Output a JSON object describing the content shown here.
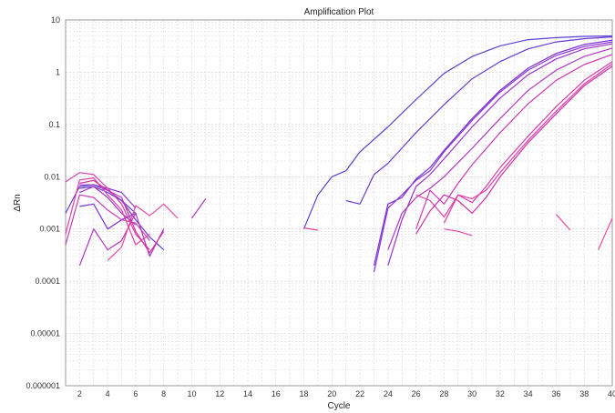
{
  "chart_data": {
    "type": "line",
    "title": "Amplification Plot",
    "xlabel": "Cycle",
    "ylabel": "ΔRn",
    "xlim": [
      1,
      40
    ],
    "ylim": [
      1e-06,
      10
    ],
    "yscale": "log",
    "grid": true,
    "legend": "none",
    "x_ticks": [
      "2",
      "4",
      "6",
      "8",
      "10",
      "12",
      "14",
      "16",
      "18",
      "20",
      "22",
      "24",
      "26",
      "28",
      "30",
      "32",
      "34",
      "36",
      "38",
      "40"
    ],
    "y_ticks": [
      "10",
      "1",
      "0.1",
      "0.01",
      "0.001",
      "0.0001",
      "0.00001",
      "0.000001"
    ],
    "series": [
      {
        "color": "#5b3fd4",
        "segments": [
          [
            [
              1,
              0.002
            ],
            [
              2,
              0.0065
            ],
            [
              3,
              0.007
            ],
            [
              4,
              0.0055
            ],
            [
              5,
              0.0035
            ],
            [
              6,
              0.002
            ]
          ],
          [
            [
              18,
              0.001
            ],
            [
              19,
              0.0045
            ],
            [
              20,
              0.01
            ],
            [
              21,
              0.013
            ],
            [
              22,
              0.03
            ],
            [
              24,
              0.09
            ],
            [
              26,
              0.3
            ],
            [
              28,
              0.95
            ],
            [
              30,
              2.0
            ],
            [
              32,
              3.2
            ],
            [
              34,
              4.2
            ],
            [
              36,
              4.6
            ],
            [
              38,
              4.85
            ],
            [
              40,
              4.95
            ]
          ]
        ]
      },
      {
        "color": "#6a3ad0",
        "segments": [
          [
            [
              2,
              0.006
            ],
            [
              3,
              0.0065
            ],
            [
              4,
              0.005
            ],
            [
              5,
              0.0035
            ],
            [
              6,
              0.0015
            ],
            [
              7,
              0.0007
            ],
            [
              8,
              0.0004
            ]
          ],
          [
            [
              21,
              0.0035
            ],
            [
              22,
              0.003
            ],
            [
              23,
              0.011
            ],
            [
              24,
              0.018
            ],
            [
              26,
              0.07
            ],
            [
              28,
              0.24
            ],
            [
              30,
              0.75
            ],
            [
              32,
              1.6
            ],
            [
              34,
              2.8
            ],
            [
              36,
              3.8
            ],
            [
              38,
              4.4
            ],
            [
              40,
              4.75
            ]
          ]
        ]
      },
      {
        "color": "#7b2fd6",
        "segments": [
          [
            [
              2,
              0.0027
            ],
            [
              3,
              0.003
            ],
            [
              4,
              0.001
            ],
            [
              5,
              0.0015
            ],
            [
              6,
              0.002
            ]
          ],
          [
            [
              23,
              0.0002
            ],
            [
              24,
              0.003
            ],
            [
              25,
              0.004
            ],
            [
              26,
              0.009
            ],
            [
              27,
              0.015
            ],
            [
              28,
              0.032
            ],
            [
              30,
              0.13
            ],
            [
              32,
              0.45
            ],
            [
              34,
              1.2
            ],
            [
              36,
              2.3
            ],
            [
              38,
              3.4
            ],
            [
              40,
              4.1
            ]
          ]
        ]
      },
      {
        "color": "#8a35d4",
        "segments": [
          [
            [
              2,
              0.007
            ],
            [
              3,
              0.007
            ],
            [
              4,
              0.006
            ],
            [
              5,
              0.005
            ],
            [
              6,
              0.0025
            ]
          ],
          [
            [
              23,
              0.00015
            ],
            [
              24,
              0.0025
            ],
            [
              25,
              0.0045
            ],
            [
              26,
              0.0085
            ],
            [
              27,
              0.013
            ],
            [
              28,
              0.03
            ],
            [
              30,
              0.12
            ],
            [
              32,
              0.42
            ],
            [
              34,
              1.1
            ],
            [
              36,
              2.1
            ],
            [
              38,
              3.1
            ],
            [
              40,
              3.8
            ]
          ]
        ]
      },
      {
        "color": "#9a32c8",
        "segments": [
          [
            [
              2,
              0.005
            ],
            [
              3,
              0.0065
            ],
            [
              4,
              0.004
            ],
            [
              5,
              0.002
            ],
            [
              6,
              0.0012
            ]
          ],
          [
            [
              24,
              0.0002
            ],
            [
              25,
              0.0015
            ],
            [
              26,
              0.0065
            ],
            [
              27,
              0.011
            ],
            [
              28,
              0.022
            ],
            [
              30,
              0.09
            ],
            [
              32,
              0.32
            ],
            [
              34,
              0.9
            ],
            [
              36,
              1.8
            ],
            [
              38,
              2.8
            ],
            [
              40,
              3.5
            ]
          ]
        ]
      },
      {
        "color": "#b038c0",
        "segments": [
          [
            [
              2,
              0.0002
            ],
            [
              3,
              0.001
            ],
            [
              4,
              0.0004
            ],
            [
              5,
              0.0006
            ],
            [
              6,
              0.002
            ],
            [
              7,
              0.0003
            ],
            [
              8,
              0.001
            ]
          ],
          [
            [
              10,
              0.0016
            ],
            [
              11,
              0.0038
            ]
          ],
          [
            [
              24,
              0.0004
            ],
            [
              25,
              0.002
            ],
            [
              26,
              0.004
            ],
            [
              27,
              0.006
            ],
            [
              28,
              0.01
            ],
            [
              30,
              0.035
            ],
            [
              32,
              0.13
            ],
            [
              34,
              0.45
            ],
            [
              36,
              1.1
            ],
            [
              38,
              2.0
            ],
            [
              40,
              2.9
            ]
          ]
        ]
      },
      {
        "color": "#c93bb4",
        "segments": [
          [
            [
              1,
              0.0005
            ],
            [
              2,
              0.0045
            ],
            [
              3,
              0.004
            ],
            [
              4,
              0.0023
            ],
            [
              5,
              0.0015
            ],
            [
              6,
              0.0013
            ],
            [
              7,
              0.0006
            ]
          ],
          [
            [
              26,
              0.001
            ],
            [
              27,
              0.0055
            ],
            [
              28,
              0.003
            ],
            [
              29,
              0.0075
            ],
            [
              30,
              0.017
            ],
            [
              32,
              0.07
            ],
            [
              34,
              0.25
            ],
            [
              36,
              0.7
            ],
            [
              38,
              1.4
            ],
            [
              40,
              2.2
            ]
          ]
        ]
      },
      {
        "color": "#d63fae",
        "segments": [
          [
            [
              1,
              0.008
            ],
            [
              2,
              0.012
            ],
            [
              3,
              0.011
            ],
            [
              4,
              0.006
            ],
            [
              5,
              0.003
            ],
            [
              6,
              0.0008
            ],
            [
              7,
              0.0004
            ]
          ],
          [
            [
              28,
              0.0013
            ],
            [
              29,
              0.0045
            ],
            [
              30,
              0.0032
            ],
            [
              31,
              0.0065
            ],
            [
              32,
              0.015
            ],
            [
              34,
              0.06
            ],
            [
              36,
              0.22
            ],
            [
              38,
              0.7
            ],
            [
              40,
              1.6
            ]
          ]
        ]
      },
      {
        "color": "#e03fa8",
        "segments": [
          [
            [
              1,
              0.0008
            ],
            [
              2,
              0.0087
            ],
            [
              3,
              0.0095
            ],
            [
              4,
              0.0045
            ],
            [
              5,
              0.0023
            ],
            [
              6,
              0.0005
            ],
            [
              7,
              0.0008
            ]
          ],
          [
            [
              18,
              0.00105
            ],
            [
              19,
              0.00095
            ]
          ],
          [
            [
              26,
              0.0045
            ],
            [
              27,
              0.0035
            ],
            [
              28,
              0.0017
            ],
            [
              29,
              0.0045
            ],
            [
              30,
              0.0038
            ],
            [
              31,
              0.0055
            ],
            [
              32,
              0.012
            ],
            [
              34,
              0.05
            ],
            [
              36,
              0.18
            ],
            [
              38,
              0.6
            ],
            [
              40,
              1.45
            ]
          ]
        ]
      },
      {
        "color": "#e84aa4",
        "segments": [
          [
            [
              4,
              0.00025
            ],
            [
              5,
              0.00045
            ],
            [
              6,
              0.0028
            ],
            [
              7,
              0.0018
            ],
            [
              8,
              0.003
            ],
            [
              9,
              0.0016
            ]
          ],
          [
            [
              28,
              0.001
            ],
            [
              29,
              0.0009
            ],
            [
              30,
              0.00075
            ]
          ],
          [
            [
              36,
              0.0019
            ],
            [
              37,
              0.00095
            ]
          ],
          [
            [
              39,
              0.0004
            ],
            [
              40,
              0.0016
            ]
          ]
        ]
      },
      {
        "color": "#d12ea8",
        "segments": [
          [
            [
              2,
              0.0075
            ],
            [
              3,
              0.0085
            ],
            [
              4,
              0.0055
            ],
            [
              5,
              0.004
            ],
            [
              6,
              0.0009
            ],
            [
              7,
              0.00035
            ],
            [
              8,
              0.0009
            ]
          ],
          [
            [
              26,
              0.0008
            ],
            [
              27,
              0.0022
            ],
            [
              28,
              0.0045
            ],
            [
              29,
              0.0035
            ],
            [
              30,
              0.002
            ],
            [
              31,
              0.004
            ],
            [
              32,
              0.01
            ],
            [
              34,
              0.045
            ],
            [
              36,
              0.16
            ],
            [
              38,
              0.55
            ],
            [
              40,
              1.3
            ]
          ]
        ]
      }
    ]
  }
}
